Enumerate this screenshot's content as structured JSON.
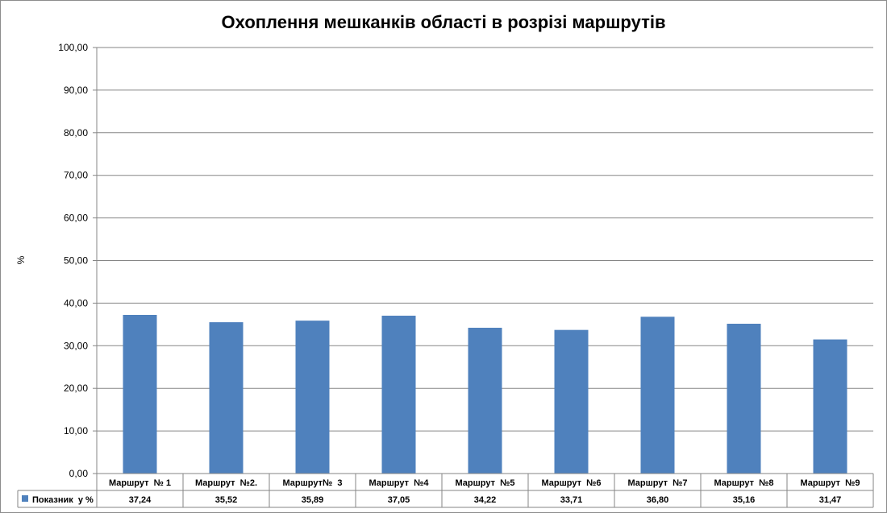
{
  "chart_data": {
    "type": "bar",
    "title": "Охоплення мешканків області в розрізі маршрутів",
    "ylabel": "%",
    "xlabel": "",
    "ylim": [
      0,
      100
    ],
    "yticks": [
      "0,00",
      "10,00",
      "20,00",
      "30,00",
      "40,00",
      "50,00",
      "60,00",
      "70,00",
      "80,00",
      "90,00",
      "100,00"
    ],
    "grid": true,
    "categories": [
      "Маршрут  № 1",
      "Маршрут  №2.",
      "Маршрут№  3",
      "Маршрут  №4",
      "Маршрут  №5",
      "Маршрут  №6",
      "Маршрут  №7",
      "Маршрут  №8",
      "Маршрут  №9"
    ],
    "series": [
      {
        "name": "Показник  у %",
        "values": [
          37.24,
          35.52,
          35.89,
          37.05,
          34.22,
          33.71,
          36.8,
          35.16,
          31.47
        ],
        "labels": [
          "37,24",
          "35,52",
          "35,89",
          "37,05",
          "34,22",
          "33,71",
          "36,80",
          "35,16",
          "31,47"
        ],
        "color": "#4f81bd"
      }
    ],
    "legend": "data-table-left"
  }
}
